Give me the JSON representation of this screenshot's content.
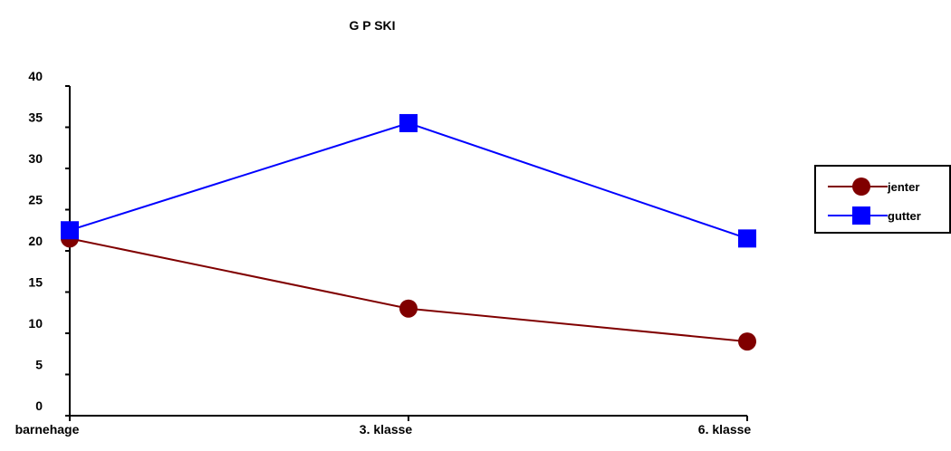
{
  "chart_data": {
    "type": "line",
    "title": "G P SKI",
    "xlabel": "",
    "ylabel": "",
    "categories": [
      "barnehage",
      "3. klasse",
      "6. klasse"
    ],
    "ylim": [
      0,
      40
    ],
    "yticks": [
      0,
      5,
      10,
      15,
      20,
      25,
      30,
      35,
      40
    ],
    "grid": false,
    "legend_position": "right",
    "series": [
      {
        "name": "jenter",
        "values": [
          21.5,
          13,
          9
        ],
        "color": "#800000",
        "marker": "circle"
      },
      {
        "name": "gutter",
        "values": [
          22.5,
          35.5,
          21.5
        ],
        "color": "#0000ff",
        "marker": "square"
      }
    ]
  }
}
